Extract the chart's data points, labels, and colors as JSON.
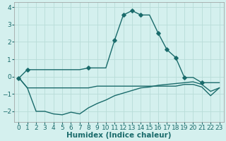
{
  "xlabel": "Humidex (Indice chaleur)",
  "bg_color": "#d4f0ee",
  "grid_color": "#b8dcd8",
  "line_color": "#1a6b6b",
  "xlim": [
    -0.5,
    23.5
  ],
  "ylim": [
    -2.6,
    4.3
  ],
  "x": [
    0,
    1,
    2,
    3,
    4,
    5,
    6,
    7,
    8,
    9,
    10,
    11,
    12,
    13,
    14,
    15,
    16,
    17,
    18,
    19,
    20,
    21,
    22,
    23
  ],
  "s0": [
    -0.1,
    0.4,
    0.4,
    0.4,
    0.4,
    0.4,
    0.4,
    0.4,
    0.5,
    0.5,
    0.5,
    2.1,
    3.55,
    3.8,
    3.55,
    3.55,
    2.5,
    1.55,
    1.1,
    -0.05,
    -0.05,
    -0.35,
    -0.35,
    -0.35
  ],
  "s1": [
    -0.05,
    -0.65,
    -0.65,
    -0.65,
    -0.65,
    -0.65,
    -0.65,
    -0.65,
    -0.65,
    -0.55,
    -0.55,
    -0.55,
    -0.55,
    -0.55,
    -0.55,
    -0.55,
    -0.55,
    -0.55,
    -0.55,
    -0.45,
    -0.45,
    -0.6,
    -1.1,
    -0.65
  ],
  "s2": [
    -0.05,
    -0.65,
    -2.0,
    -2.0,
    -2.15,
    -2.2,
    -2.05,
    -2.15,
    -1.8,
    -1.55,
    -1.35,
    -1.1,
    -0.95,
    -0.8,
    -0.65,
    -0.6,
    -0.5,
    -0.45,
    -0.4,
    -0.35,
    -0.3,
    -0.45,
    -0.85,
    -0.65
  ],
  "s0_marker_x": [
    0,
    1,
    8,
    11,
    12,
    13,
    14,
    16,
    17,
    18,
    19,
    21
  ],
  "s0_marker_y": [
    -0.1,
    0.4,
    0.5,
    2.1,
    3.55,
    3.8,
    3.55,
    2.5,
    1.55,
    1.1,
    -0.05,
    -0.35
  ],
  "xticks": [
    0,
    1,
    2,
    3,
    4,
    5,
    6,
    7,
    8,
    9,
    10,
    11,
    12,
    13,
    14,
    15,
    16,
    17,
    18,
    19,
    20,
    21,
    22,
    23
  ],
  "yticks": [
    -2,
    -1,
    0,
    1,
    2,
    3,
    4
  ],
  "fontsize_axis": 6.5,
  "fontsize_label": 7.5
}
